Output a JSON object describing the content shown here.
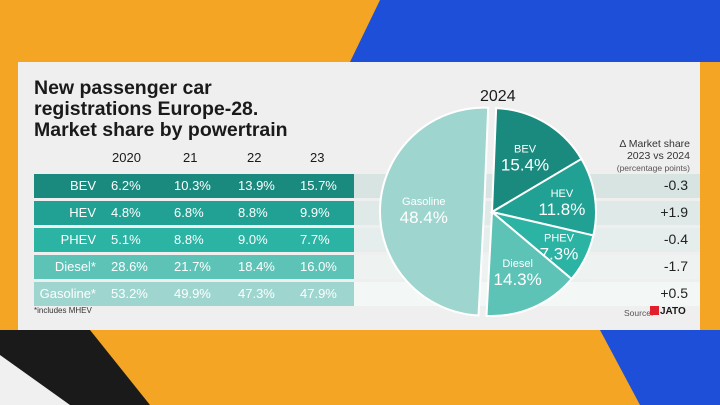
{
  "title": [
    "New passenger car",
    "registrations Europe-28.",
    "Market share by powertrain"
  ],
  "pie_year": "2024",
  "delta_header": {
    "line1": "Δ Market share",
    "line2": "2023 vs 2024",
    "line3": "(percentage points)"
  },
  "footnote": "*includes MHEV",
  "source_label": "Source:",
  "source_brand": "JATO",
  "colors": {
    "bev": "#1a8a7e",
    "hev": "#21a193",
    "phev": "#2bb3a4",
    "diesel": "#5ec3b7",
    "gasoline": "#9ed6cf"
  },
  "chart_data": [
    {
      "type": "table",
      "columns": [
        "2020",
        "21",
        "22",
        "23"
      ],
      "rows": [
        {
          "label": "BEV",
          "values": [
            "6.2%",
            "10.3%",
            "13.9%",
            "15.7%"
          ],
          "delta": "-0.3"
        },
        {
          "label": "HEV",
          "values": [
            "4.8%",
            "6.8%",
            "8.8%",
            "9.9%"
          ],
          "delta": "+1.9"
        },
        {
          "label": "PHEV",
          "values": [
            "5.1%",
            "8.8%",
            "9.0%",
            "7.7%"
          ],
          "delta": "-0.4"
        },
        {
          "label": "Diesel*",
          "values": [
            "28.6%",
            "21.7%",
            "18.4%",
            "16.0%"
          ],
          "delta": "-1.7"
        },
        {
          "label": "Gasoline*",
          "values": [
            "53.2%",
            "49.9%",
            "47.3%",
            "47.9%"
          ],
          "delta": "+0.5"
        }
      ]
    },
    {
      "type": "pie",
      "title": "2024",
      "slices": [
        {
          "label": "BEV",
          "value": 15.4,
          "display": "15.4%"
        },
        {
          "label": "HEV",
          "value": 11.8,
          "display": "11.8%"
        },
        {
          "label": "PHEV",
          "value": 7.3,
          "display": "7.3%"
        },
        {
          "label": "Diesel",
          "value": 14.3,
          "display": "14.3%"
        },
        {
          "label": "Gasoline",
          "value": 48.4,
          "display": "48.4%",
          "exploded": true
        }
      ]
    }
  ]
}
